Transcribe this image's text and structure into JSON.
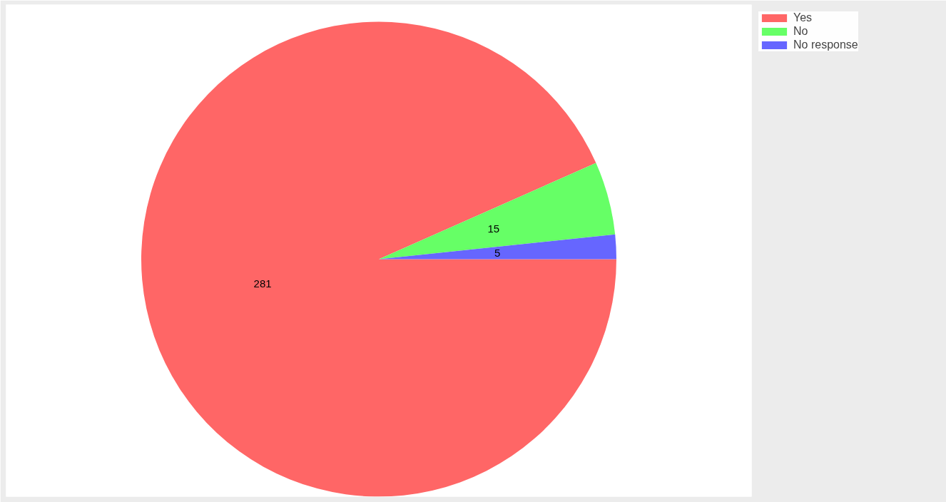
{
  "chart_data": {
    "type": "pie",
    "categories": [
      "Yes",
      "No",
      "No response"
    ],
    "values": [
      281,
      15,
      5
    ],
    "colors": [
      "#ff6666",
      "#66ff66",
      "#6666ff"
    ],
    "data_labels": true,
    "legend": "top right"
  }
}
